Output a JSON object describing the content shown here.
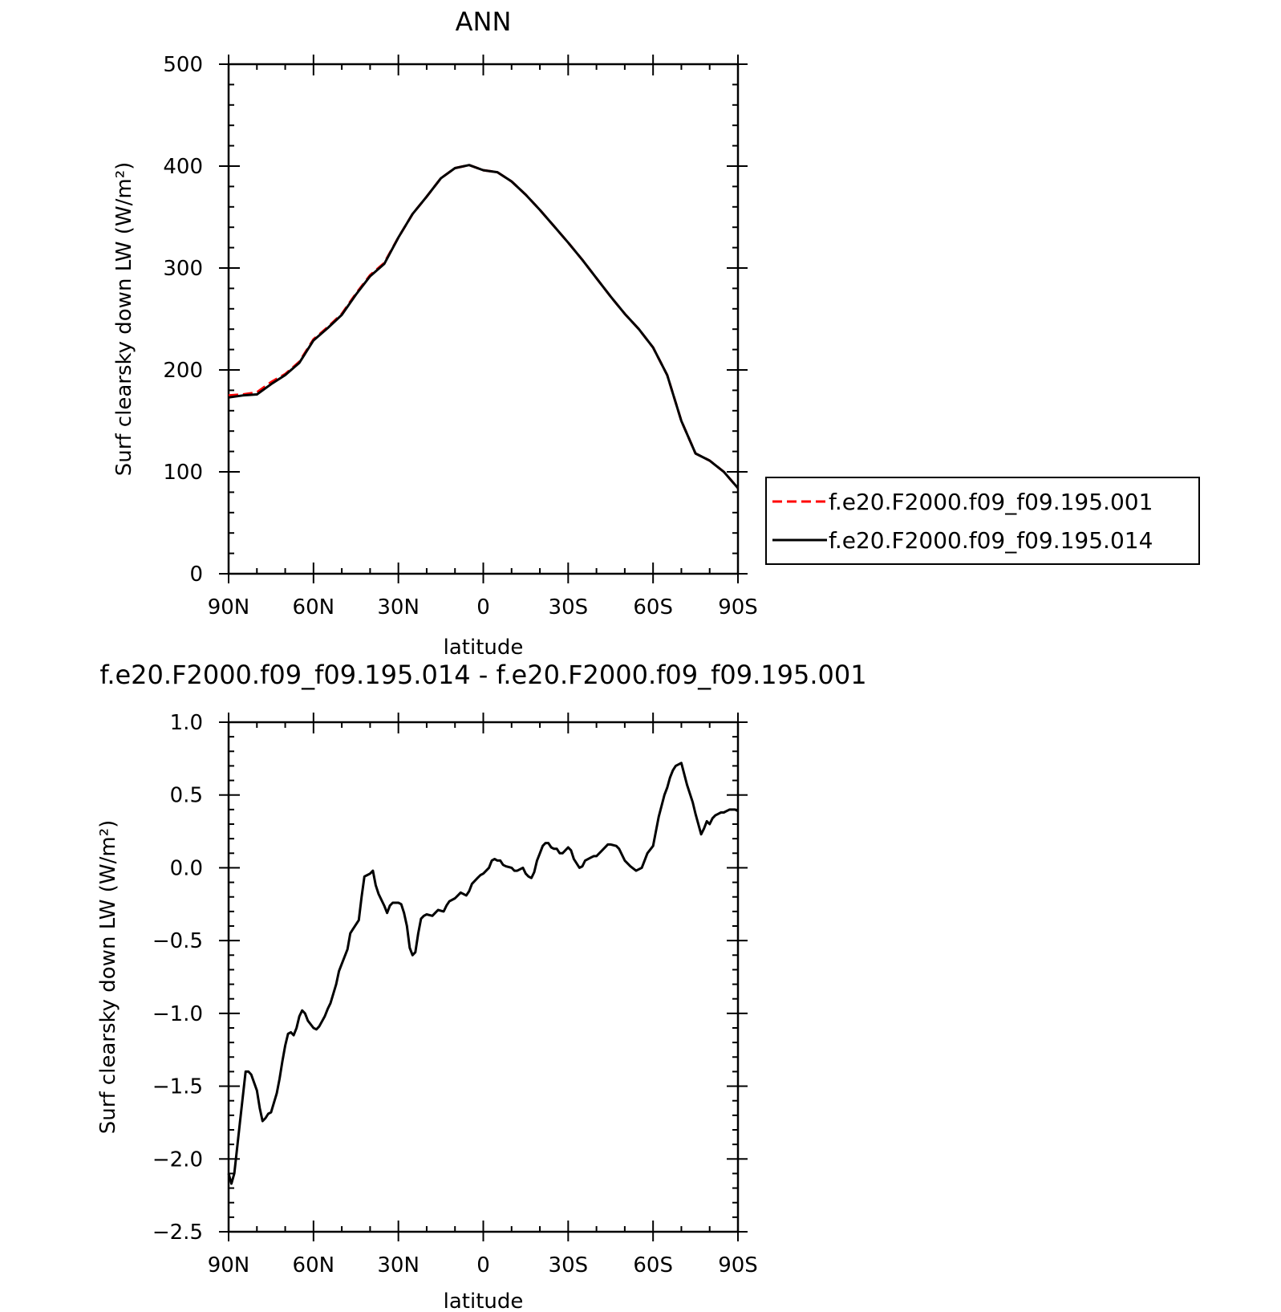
{
  "chart_data": [
    {
      "type": "line",
      "title": "ANN",
      "xlabel": "latitude",
      "ylabel": "Surf clearsky down LW (W/m²)",
      "xlim": [
        90,
        -90
      ],
      "ylim": [
        0,
        500
      ],
      "x_ticks": [
        90,
        60,
        30,
        0,
        -30,
        -60,
        -90
      ],
      "x_tick_labels": [
        "90N",
        "60N",
        "30N",
        "0",
        "30S",
        "60S",
        "90S"
      ],
      "y_ticks": [
        0,
        100,
        200,
        300,
        400,
        500
      ],
      "y_tick_labels": [
        "0",
        "100",
        "200",
        "300",
        "400",
        "500"
      ],
      "legend_position": "right",
      "series": [
        {
          "name": "f.e20.F2000.f09_f09.195.001",
          "color": "#ff0000",
          "dash": "dashed",
          "x": [
            90,
            85,
            80,
            75,
            70,
            65,
            60,
            55,
            50,
            45,
            40,
            35,
            30,
            25,
            20,
            15,
            10,
            5,
            0,
            -5,
            -10,
            -15,
            -20,
            -25,
            -30,
            -35,
            -40,
            -45,
            -50,
            -55,
            -60,
            -65,
            -70,
            -75,
            -80,
            -85,
            -90
          ],
          "y": [
            175,
            176,
            178,
            188,
            196,
            208,
            230,
            242,
            255,
            275,
            293,
            305,
            330,
            353,
            370,
            388,
            398,
            401,
            396,
            394,
            385,
            372,
            357,
            341,
            325,
            308,
            290,
            272,
            255,
            240,
            222,
            195,
            150,
            118,
            111,
            100,
            84
          ]
        },
        {
          "name": "f.e20.F2000.f09_f09.195.014",
          "color": "#000000",
          "dash": "solid",
          "x": [
            90,
            85,
            80,
            75,
            70,
            65,
            60,
            55,
            50,
            45,
            40,
            35,
            30,
            25,
            20,
            15,
            10,
            5,
            0,
            -5,
            -10,
            -15,
            -20,
            -25,
            -30,
            -35,
            -40,
            -45,
            -50,
            -55,
            -60,
            -65,
            -70,
            -75,
            -80,
            -85,
            -90
          ],
          "y": [
            173,
            175,
            176,
            186,
            195,
            207,
            229,
            241,
            254,
            274,
            292,
            304,
            330,
            353,
            370,
            388,
            398,
            401,
            396,
            394,
            385,
            372,
            357,
            341,
            325,
            308,
            290,
            272,
            255,
            240,
            222,
            195,
            150,
            118,
            111,
            100,
            84
          ]
        }
      ]
    },
    {
      "type": "line",
      "title": "f.e20.F2000.f09_f09.195.014 - f.e20.F2000.f09_f09.195.001",
      "xlabel": "latitude",
      "ylabel": "Surf clearsky down LW (W/m²)",
      "xlim": [
        90,
        -90
      ],
      "ylim": [
        -2.5,
        1.0
      ],
      "x_ticks": [
        90,
        60,
        30,
        0,
        -30,
        -60,
        -90
      ],
      "x_tick_labels": [
        "90N",
        "60N",
        "30N",
        "0",
        "30S",
        "60S",
        "90S"
      ],
      "y_ticks": [
        1.0,
        0.5,
        0.0,
        -0.5,
        -1.0,
        -1.5,
        -2.0,
        -2.5
      ],
      "y_tick_labels": [
        "1.0",
        "0.5",
        "0.0",
        "−0.5",
        "−1.0",
        "−1.5",
        "−2.0",
        "−2.5"
      ],
      "series": [
        {
          "color": "#000000",
          "x": [
            90,
            89,
            88,
            86,
            84,
            83,
            82,
            80,
            79,
            78,
            77,
            76,
            75,
            73,
            72,
            71,
            70,
            69,
            68,
            67,
            66,
            65,
            64,
            63,
            62,
            60,
            59,
            58,
            56,
            55,
            54,
            52,
            51,
            50,
            48,
            47,
            46,
            44,
            43,
            42,
            41,
            40,
            39,
            38,
            37,
            35,
            34,
            33,
            32,
            30,
            29,
            28,
            27,
            26,
            25,
            24,
            23,
            22,
            21,
            20,
            18,
            17,
            16,
            14,
            13,
            12,
            10,
            9,
            8,
            6,
            5,
            4,
            2,
            1,
            0,
            -2,
            -3,
            -4,
            -5,
            -6,
            -7,
            -8,
            -10,
            -11,
            -12,
            -14,
            -15,
            -16,
            -17,
            -18,
            -19,
            -20,
            -21,
            -22,
            -23,
            -24,
            -25,
            -26,
            -27,
            -28,
            -29,
            -30,
            -31,
            -32,
            -34,
            -35,
            -36,
            -38,
            -39,
            -40,
            -42,
            -44,
            -45,
            -47,
            -48,
            -50,
            -52,
            -54,
            -56,
            -57,
            -58,
            -60,
            -62,
            -64,
            -65,
            -66,
            -67,
            -68,
            -70,
            -72,
            -74,
            -75,
            -76,
            -77,
            -78,
            -79,
            -80,
            -81,
            -82,
            -83,
            -84,
            -85,
            -86,
            -87,
            -88,
            -89,
            -90
          ],
          "y": [
            -2.1,
            -2.17,
            -2.1,
            -1.75,
            -1.4,
            -1.4,
            -1.42,
            -1.53,
            -1.65,
            -1.74,
            -1.72,
            -1.69,
            -1.68,
            -1.55,
            -1.45,
            -1.33,
            -1.22,
            -1.14,
            -1.13,
            -1.15,
            -1.1,
            -1.02,
            -0.98,
            -1.0,
            -1.05,
            -1.1,
            -1.11,
            -1.09,
            -1.02,
            -0.97,
            -0.93,
            -0.8,
            -0.71,
            -0.66,
            -0.56,
            -0.45,
            -0.42,
            -0.36,
            -0.2,
            -0.06,
            -0.05,
            -0.04,
            -0.02,
            -0.12,
            -0.18,
            -0.26,
            -0.31,
            -0.26,
            -0.24,
            -0.24,
            -0.25,
            -0.31,
            -0.4,
            -0.55,
            -0.6,
            -0.58,
            -0.45,
            -0.35,
            -0.33,
            -0.32,
            -0.33,
            -0.31,
            -0.29,
            -0.3,
            -0.26,
            -0.23,
            -0.21,
            -0.19,
            -0.17,
            -0.19,
            -0.16,
            -0.11,
            -0.07,
            -0.05,
            -0.04,
            0.0,
            0.05,
            0.06,
            0.05,
            0.05,
            0.02,
            0.01,
            0.0,
            -0.02,
            -0.02,
            0.0,
            -0.04,
            -0.06,
            -0.07,
            -0.03,
            0.05,
            0.1,
            0.15,
            0.17,
            0.17,
            0.14,
            0.13,
            0.13,
            0.1,
            0.1,
            0.12,
            0.14,
            0.12,
            0.06,
            0.0,
            0.01,
            0.05,
            0.07,
            0.08,
            0.08,
            0.12,
            0.16,
            0.16,
            0.15,
            0.13,
            0.05,
            0.01,
            -0.02,
            0.0,
            0.05,
            0.1,
            0.15,
            0.35,
            0.5,
            0.55,
            0.62,
            0.67,
            0.7,
            0.72,
            0.57,
            0.45,
            0.37,
            0.3,
            0.23,
            0.27,
            0.32,
            0.3,
            0.34,
            0.36,
            0.37,
            0.38,
            0.38,
            0.39,
            0.4,
            0.4,
            0.4,
            0.39
          ]
        }
      ]
    }
  ]
}
